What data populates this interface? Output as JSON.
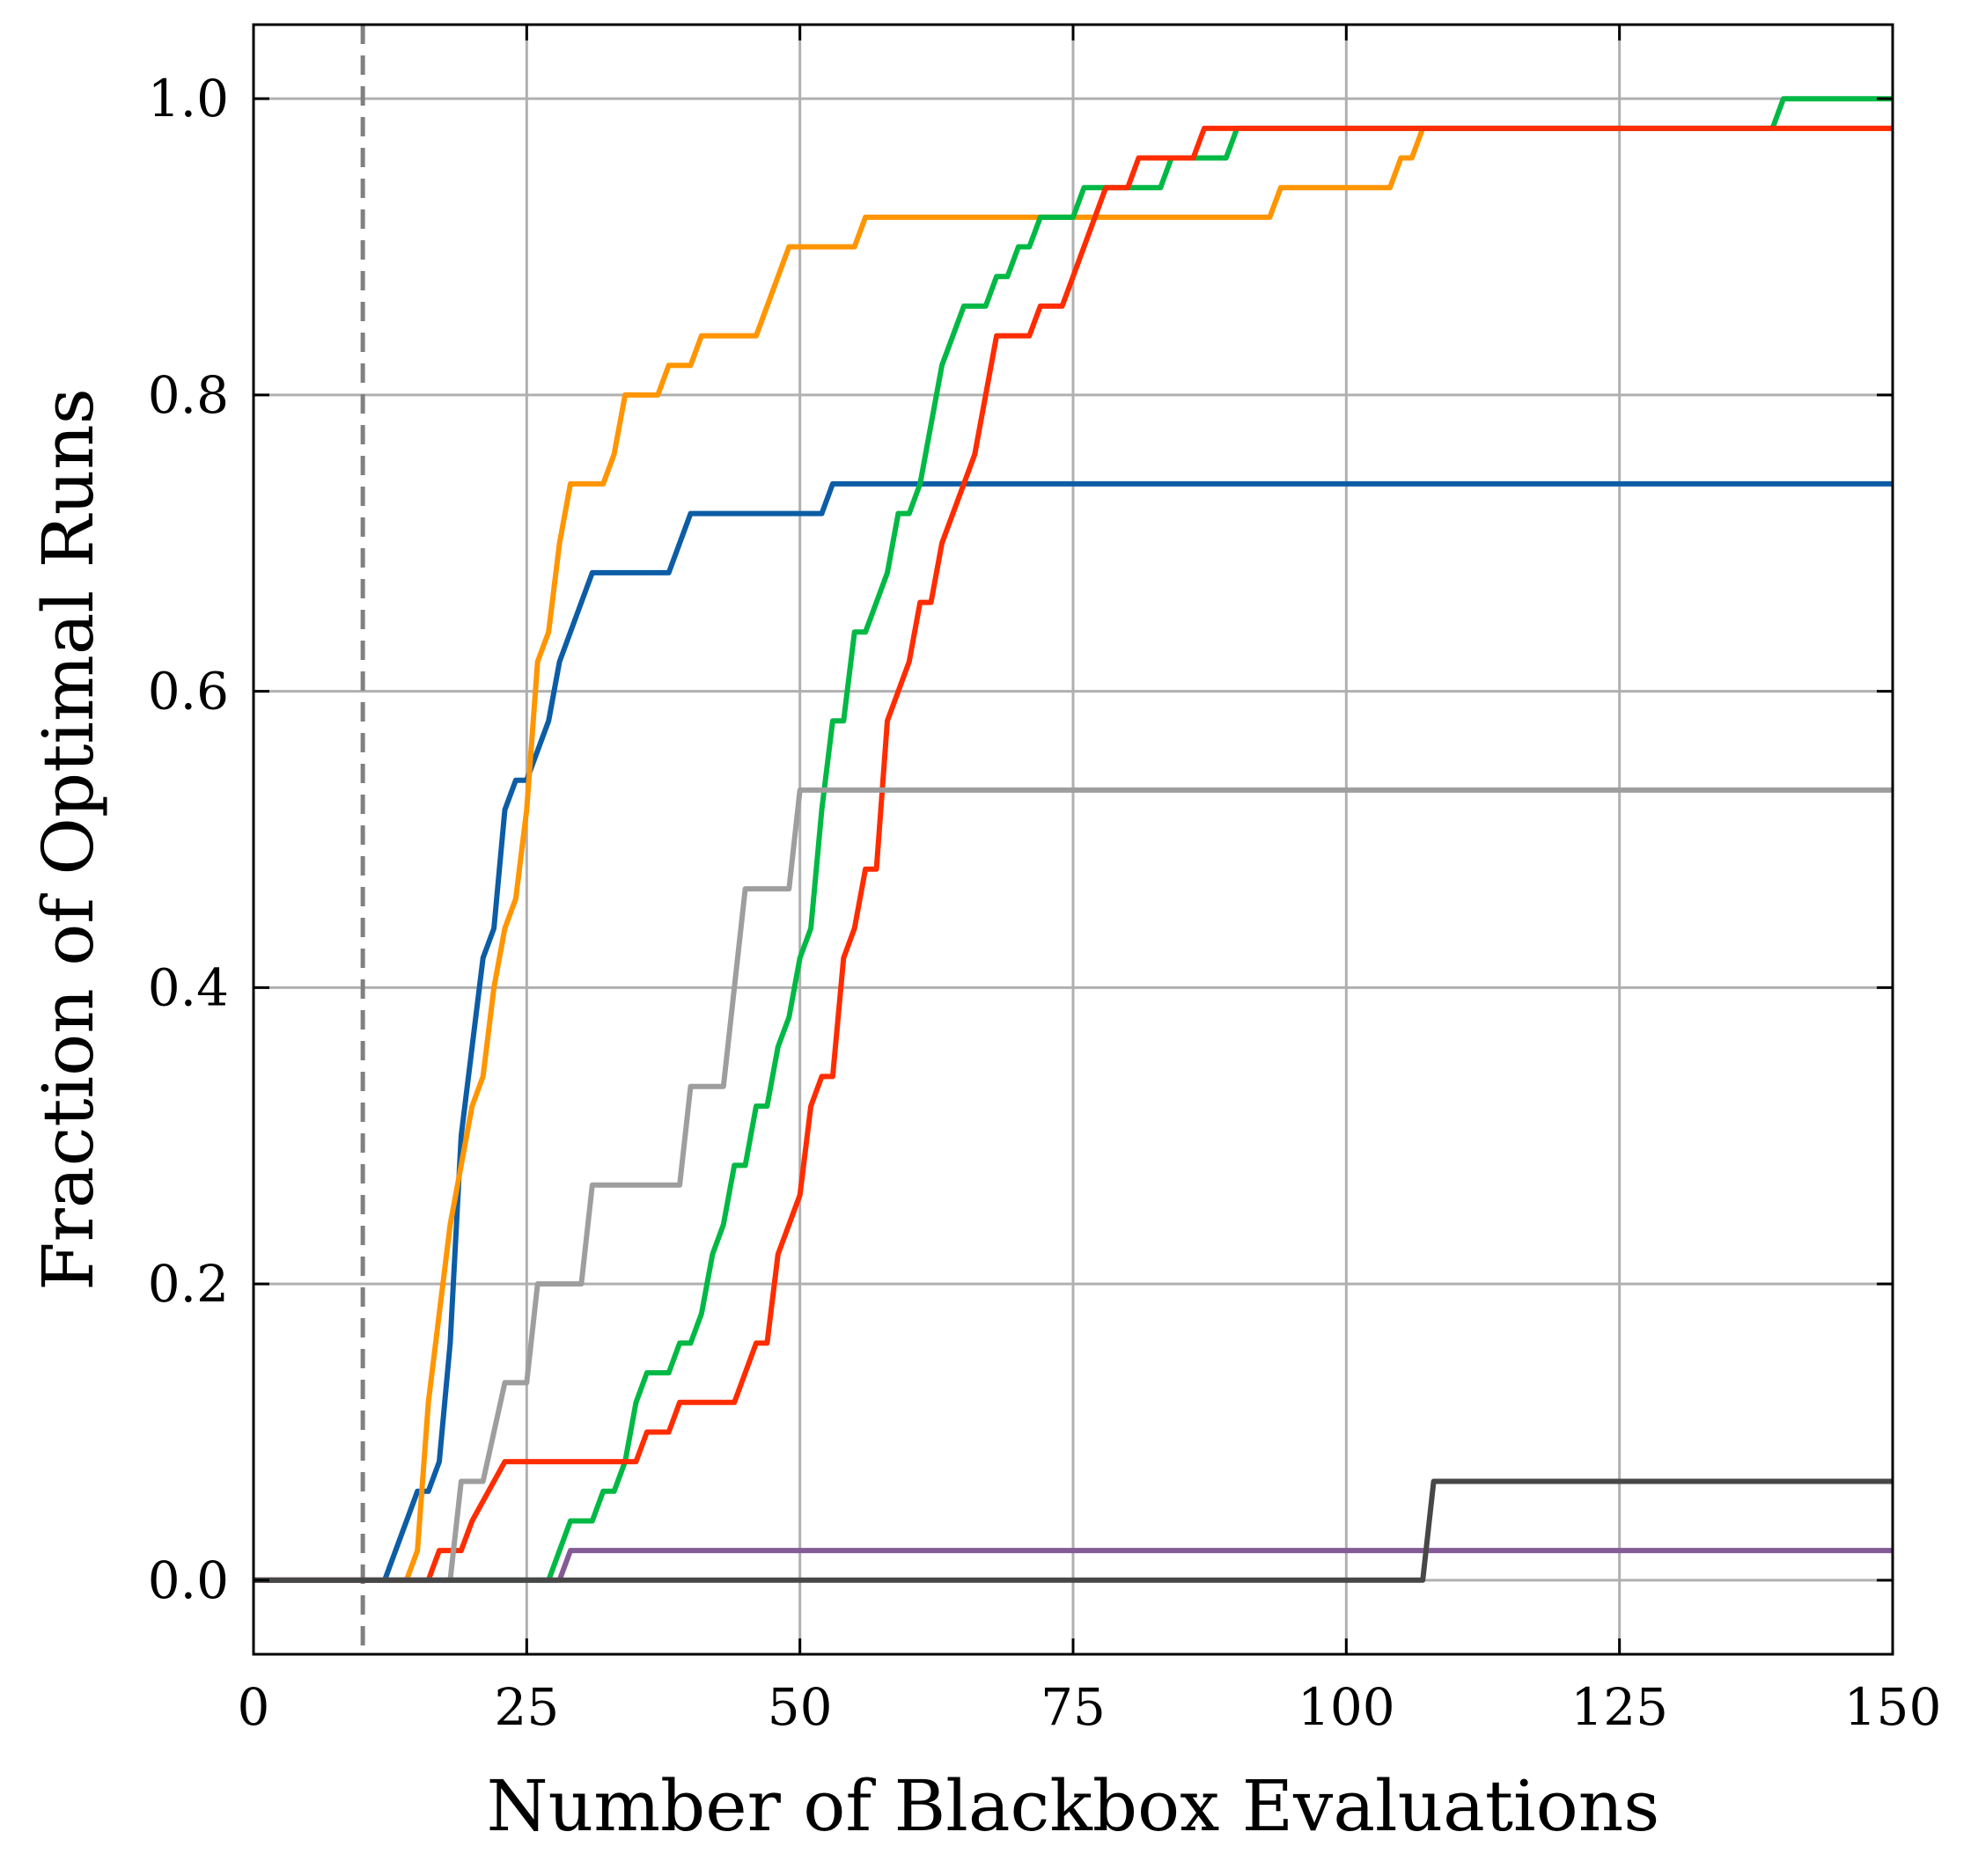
{
  "chart_data": {
    "type": "line",
    "xlabel": "Number of Blackbox Evaluations",
    "ylabel": "Fraction of Optimal Runs",
    "xlim": [
      0,
      150
    ],
    "ylim": [
      -0.05,
      1.05
    ],
    "x_ticks": [
      0,
      25,
      50,
      75,
      100,
      125,
      150
    ],
    "x_tick_labels": [
      "0",
      "25",
      "50",
      "75",
      "100",
      "125",
      "150"
    ],
    "y_ticks": [
      0.0,
      0.2,
      0.4,
      0.6,
      0.8,
      1.0
    ],
    "y_tick_labels": [
      "0.0",
      "0.2",
      "0.4",
      "0.6",
      "0.8",
      "1.0"
    ],
    "grid": true,
    "reference_line": {
      "x": 10,
      "style": "dashed",
      "color": "#808080"
    },
    "series": [
      {
        "color": "#0C5DA5",
        "points": [
          [
            0,
            0
          ],
          [
            12,
            0
          ],
          [
            15,
            0.06
          ],
          [
            16,
            0.06
          ],
          [
            17,
            0.08
          ],
          [
            18,
            0.16
          ],
          [
            19,
            0.3
          ],
          [
            21,
            0.42
          ],
          [
            22,
            0.44
          ],
          [
            23,
            0.52
          ],
          [
            24,
            0.54
          ],
          [
            25,
            0.54
          ],
          [
            27,
            0.58
          ],
          [
            28,
            0.62
          ],
          [
            31,
            0.68
          ],
          [
            38,
            0.68
          ],
          [
            40,
            0.72
          ],
          [
            52,
            0.72
          ],
          [
            53,
            0.74
          ],
          [
            150,
            0.74
          ]
        ]
      },
      {
        "color": "#FF9500",
        "points": [
          [
            0,
            0
          ],
          [
            14,
            0
          ],
          [
            15,
            0.02
          ],
          [
            16,
            0.12
          ],
          [
            17,
            0.18
          ],
          [
            18,
            0.24
          ],
          [
            20,
            0.32
          ],
          [
            21,
            0.34
          ],
          [
            22,
            0.4
          ],
          [
            23,
            0.44
          ],
          [
            24,
            0.46
          ],
          [
            25,
            0.52
          ],
          [
            26,
            0.62
          ],
          [
            27,
            0.64
          ],
          [
            28,
            0.7
          ],
          [
            29,
            0.74
          ],
          [
            32,
            0.74
          ],
          [
            33,
            0.76
          ],
          [
            34,
            0.8
          ],
          [
            37,
            0.8
          ],
          [
            38,
            0.82
          ],
          [
            40,
            0.82
          ],
          [
            41,
            0.84
          ],
          [
            46,
            0.84
          ],
          [
            49,
            0.9
          ],
          [
            55,
            0.9
          ],
          [
            56,
            0.92
          ],
          [
            93,
            0.92
          ],
          [
            94,
            0.94
          ],
          [
            104,
            0.94
          ],
          [
            105,
            0.96
          ],
          [
            106,
            0.96
          ],
          [
            107,
            0.98
          ],
          [
            150,
            0.98
          ]
        ]
      },
      {
        "color": "#00B945",
        "points": [
          [
            0,
            0
          ],
          [
            27,
            0
          ],
          [
            29,
            0.04
          ],
          [
            31,
            0.04
          ],
          [
            32,
            0.06
          ],
          [
            33,
            0.06
          ],
          [
            34,
            0.08
          ],
          [
            35,
            0.12
          ],
          [
            36,
            0.14
          ],
          [
            38,
            0.14
          ],
          [
            39,
            0.16
          ],
          [
            40,
            0.16
          ],
          [
            41,
            0.18
          ],
          [
            42,
            0.22
          ],
          [
            43,
            0.24
          ],
          [
            44,
            0.28
          ],
          [
            45,
            0.28
          ],
          [
            46,
            0.32
          ],
          [
            47,
            0.32
          ],
          [
            48,
            0.36
          ],
          [
            49,
            0.38
          ],
          [
            50,
            0.42
          ],
          [
            51,
            0.44
          ],
          [
            52,
            0.52
          ],
          [
            53,
            0.58
          ],
          [
            54,
            0.58
          ],
          [
            55,
            0.64
          ],
          [
            56,
            0.64
          ],
          [
            58,
            0.68
          ],
          [
            59,
            0.72
          ],
          [
            60,
            0.72
          ],
          [
            61,
            0.74
          ],
          [
            62,
            0.78
          ],
          [
            63,
            0.82
          ],
          [
            65,
            0.86
          ],
          [
            67,
            0.86
          ],
          [
            68,
            0.88
          ],
          [
            69,
            0.88
          ],
          [
            70,
            0.9
          ],
          [
            71,
            0.9
          ],
          [
            72,
            0.92
          ],
          [
            75,
            0.92
          ],
          [
            76,
            0.94
          ],
          [
            83,
            0.94
          ],
          [
            84,
            0.96
          ],
          [
            89,
            0.96
          ],
          [
            90,
            0.98
          ],
          [
            139,
            0.98
          ],
          [
            140,
            1.0
          ],
          [
            150,
            1.0
          ]
        ]
      },
      {
        "color": "#FF2C00",
        "points": [
          [
            0,
            0
          ],
          [
            16,
            0
          ],
          [
            17,
            0.02
          ],
          [
            19,
            0.02
          ],
          [
            20,
            0.04
          ],
          [
            23,
            0.08
          ],
          [
            35,
            0.08
          ],
          [
            36,
            0.1
          ],
          [
            38,
            0.1
          ],
          [
            39,
            0.12
          ],
          [
            44,
            0.12
          ],
          [
            45,
            0.14
          ],
          [
            46,
            0.16
          ],
          [
            47,
            0.16
          ],
          [
            48,
            0.22
          ],
          [
            50,
            0.26
          ],
          [
            51,
            0.32
          ],
          [
            52,
            0.34
          ],
          [
            53,
            0.34
          ],
          [
            54,
            0.42
          ],
          [
            55,
            0.44
          ],
          [
            56,
            0.48
          ],
          [
            57,
            0.48
          ],
          [
            58,
            0.58
          ],
          [
            60,
            0.62
          ],
          [
            61,
            0.66
          ],
          [
            62,
            0.66
          ],
          [
            63,
            0.7
          ],
          [
            65,
            0.74
          ],
          [
            66,
            0.76
          ],
          [
            68,
            0.84
          ],
          [
            71,
            0.84
          ],
          [
            72,
            0.86
          ],
          [
            74,
            0.86
          ],
          [
            78,
            0.94
          ],
          [
            80,
            0.94
          ],
          [
            81,
            0.96
          ],
          [
            86,
            0.96
          ],
          [
            87,
            0.98
          ],
          [
            150,
            0.98
          ]
        ]
      },
      {
        "color": "#9E9E9E",
        "points": [
          [
            0,
            0
          ],
          [
            18,
            0
          ],
          [
            19,
            0.0667
          ],
          [
            21,
            0.0667
          ],
          [
            23,
            0.1333
          ],
          [
            25,
            0.1333
          ],
          [
            26,
            0.2
          ],
          [
            30,
            0.2
          ],
          [
            31,
            0.2667
          ],
          [
            39,
            0.2667
          ],
          [
            40,
            0.3333
          ],
          [
            43,
            0.3333
          ],
          [
            45,
            0.4667
          ],
          [
            49,
            0.4667
          ],
          [
            50,
            0.5333
          ],
          [
            150,
            0.5333
          ]
        ]
      },
      {
        "color": "#845B97",
        "points": [
          [
            0,
            0
          ],
          [
            28,
            0
          ],
          [
            29,
            0.02
          ],
          [
            150,
            0.02
          ]
        ]
      },
      {
        "color": "#474747",
        "points": [
          [
            0,
            0
          ],
          [
            107,
            0
          ],
          [
            108,
            0.0667
          ],
          [
            150,
            0.0667
          ]
        ]
      }
    ]
  }
}
